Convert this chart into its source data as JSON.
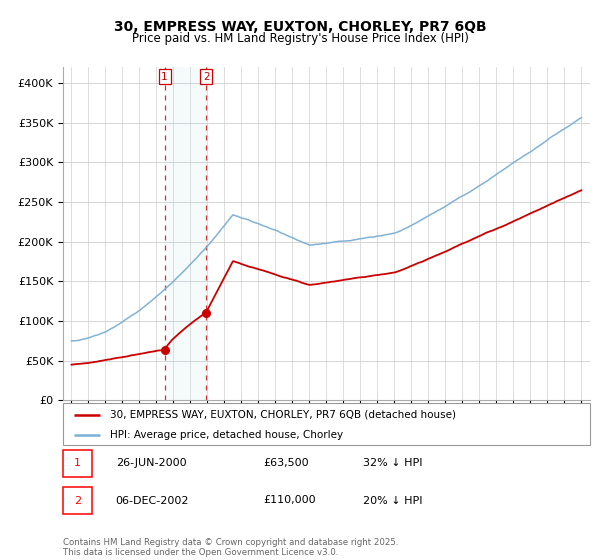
{
  "title1": "30, EMPRESS WAY, EUXTON, CHORLEY, PR7 6QB",
  "title2": "Price paid vs. HM Land Registry's House Price Index (HPI)",
  "legend_house": "30, EMPRESS WAY, EUXTON, CHORLEY, PR7 6QB (detached house)",
  "legend_hpi": "HPI: Average price, detached house, Chorley",
  "house_color": "#cc0000",
  "hpi_color": "#7bafd4",
  "transaction1_label": "1",
  "transaction1_date": "26-JUN-2000",
  "transaction1_price": "£63,500",
  "transaction1_hpi": "32% ↓ HPI",
  "transaction2_label": "2",
  "transaction2_date": "06-DEC-2002",
  "transaction2_price": "£110,000",
  "transaction2_hpi": "20% ↓ HPI",
  "footer": "Contains HM Land Registry data © Crown copyright and database right 2025.\nThis data is licensed under the Open Government Licence v3.0.",
  "ylim": [
    0,
    420000
  ],
  "yticks": [
    0,
    50000,
    100000,
    150000,
    200000,
    250000,
    300000,
    350000,
    400000
  ],
  "xstart_year": 1995,
  "xend_year": 2025,
  "vline1_year": 2000.48,
  "vline2_year": 2002.92,
  "dot1_year": 2000.48,
  "dot1_val": 63500,
  "dot2_year": 2002.92,
  "dot2_val": 110000,
  "shade_alpha": 0.12,
  "shade_color": "#add8e6"
}
